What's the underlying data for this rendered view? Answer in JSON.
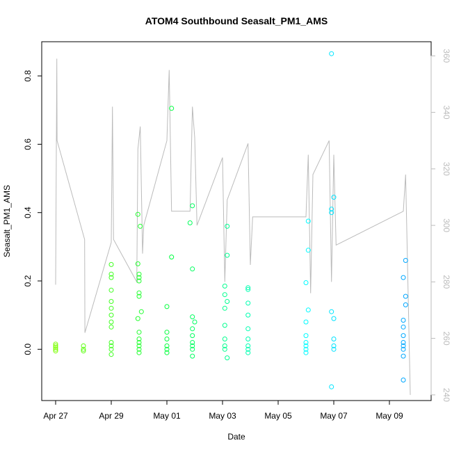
{
  "chart_data": {
    "type": "scatter",
    "title": "ATOM4 Southbound Seasalt_PM1_AMS",
    "xlabel": "Date",
    "ylabel": "Seasalt_PM1_AMS",
    "xlim": [
      "2018-04-26T12:00",
      "2018-05-10T12:00"
    ],
    "ylim": [
      -0.15,
      0.9
    ],
    "y2lim": [
      238,
      365
    ],
    "x_ticks": [
      {
        "date": "2018-04-27",
        "label": "Apr 27"
      },
      {
        "date": "2018-04-29",
        "label": "Apr 29"
      },
      {
        "date": "2018-05-01",
        "label": "May 01"
      },
      {
        "date": "2018-05-03",
        "label": "May 03"
      },
      {
        "date": "2018-05-05",
        "label": "May 05"
      },
      {
        "date": "2018-05-07",
        "label": "May 07"
      },
      {
        "date": "2018-05-09",
        "label": "May 09"
      }
    ],
    "y_ticks": [
      "0.0",
      "0.2",
      "0.4",
      "0.6",
      "0.8"
    ],
    "y2_ticks": [
      "240",
      "260",
      "280",
      "300",
      "320",
      "340",
      "360"
    ],
    "grid": false,
    "point_color_gradient": [
      "#8cff00",
      "#00ff40",
      "#00ffff",
      "#0090ff"
    ],
    "line_color": "#bbbbbb",
    "profile_series": [
      {
        "x": "2018-04-27T00:00",
        "y": 279
      },
      {
        "x": "2018-04-27T01:00",
        "y": 359
      },
      {
        "x": "2018-04-27T01:15",
        "y": 330
      },
      {
        "x": "2018-04-28T01:00",
        "y": 295
      },
      {
        "x": "2018-04-28T01:15",
        "y": 262
      },
      {
        "x": "2018-04-29T00:00",
        "y": 294
      },
      {
        "x": "2018-04-29T01:00",
        "y": 342
      },
      {
        "x": "2018-04-29T02:00",
        "y": 295
      },
      {
        "x": "2018-04-29T22:00",
        "y": 280
      },
      {
        "x": "2018-04-29T23:00",
        "y": 327
      },
      {
        "x": "2018-04-30T01:00",
        "y": 335
      },
      {
        "x": "2018-04-30T03:00",
        "y": 290
      },
      {
        "x": "2018-04-30T04:00",
        "y": 300
      },
      {
        "x": "2018-05-01T00:00",
        "y": 330
      },
      {
        "x": "2018-05-01T02:00",
        "y": 355
      },
      {
        "x": "2018-05-01T04:00",
        "y": 305
      },
      {
        "x": "2018-05-01T20:00",
        "y": 305
      },
      {
        "x": "2018-05-01T22:00",
        "y": 342
      },
      {
        "x": "2018-05-02T00:00",
        "y": 331
      },
      {
        "x": "2018-05-02T02:00",
        "y": 300
      },
      {
        "x": "2018-05-03T00:00",
        "y": 324
      },
      {
        "x": "2018-05-03T02:00",
        "y": 280
      },
      {
        "x": "2018-05-03T04:00",
        "y": 309
      },
      {
        "x": "2018-05-03T22:00",
        "y": 329
      },
      {
        "x": "2018-05-04T00:00",
        "y": 286
      },
      {
        "x": "2018-05-04T02:00",
        "y": 303
      },
      {
        "x": "2018-05-06T00:00",
        "y": 303
      },
      {
        "x": "2018-05-06T02:00",
        "y": 325
      },
      {
        "x": "2018-05-06T04:00",
        "y": 276
      },
      {
        "x": "2018-05-06T06:00",
        "y": 318
      },
      {
        "x": "2018-05-06T20:00",
        "y": 330
      },
      {
        "x": "2018-05-06T22:00",
        "y": 280
      },
      {
        "x": "2018-05-07T00:00",
        "y": 325
      },
      {
        "x": "2018-05-07T02:00",
        "y": 293
      },
      {
        "x": "2018-05-09T12:00",
        "y": 305
      },
      {
        "x": "2018-05-09T14:00",
        "y": 318
      },
      {
        "x": "2018-05-09T18:00",
        "y": 240
      }
    ],
    "points": [
      {
        "x": "2018-04-27T00:00",
        "y": 0.01
      },
      {
        "x": "2018-04-27T00:00",
        "y": 0.0
      },
      {
        "x": "2018-04-27T00:00",
        "y": 0.005
      },
      {
        "x": "2018-04-27T00:00",
        "y": -0.005
      },
      {
        "x": "2018-04-27T00:00",
        "y": 0.015
      },
      {
        "x": "2018-04-28T00:00",
        "y": 0.01
      },
      {
        "x": "2018-04-28T00:00",
        "y": 0.0
      },
      {
        "x": "2018-04-28T00:00",
        "y": -0.005
      },
      {
        "x": "2018-04-29T00:00",
        "y": 0.248
      },
      {
        "x": "2018-04-29T00:00",
        "y": 0.22
      },
      {
        "x": "2018-04-29T00:00",
        "y": 0.21
      },
      {
        "x": "2018-04-29T00:00",
        "y": 0.173
      },
      {
        "x": "2018-04-29T00:00",
        "y": 0.14
      },
      {
        "x": "2018-04-29T00:00",
        "y": 0.12
      },
      {
        "x": "2018-04-29T00:00",
        "y": 0.1
      },
      {
        "x": "2018-04-29T00:00",
        "y": 0.08
      },
      {
        "x": "2018-04-29T00:00",
        "y": 0.065
      },
      {
        "x": "2018-04-29T00:00",
        "y": 0.02
      },
      {
        "x": "2018-04-29T00:00",
        "y": 0.01
      },
      {
        "x": "2018-04-29T00:00",
        "y": 0.0
      },
      {
        "x": "2018-04-29T00:00",
        "y": -0.015
      },
      {
        "x": "2018-04-29T23:00",
        "y": 0.395
      },
      {
        "x": "2018-04-30T01:00",
        "y": 0.36
      },
      {
        "x": "2018-04-29T23:00",
        "y": 0.25
      },
      {
        "x": "2018-04-30T00:00",
        "y": 0.22
      },
      {
        "x": "2018-04-30T00:00",
        "y": 0.21
      },
      {
        "x": "2018-04-30T00:00",
        "y": 0.2
      },
      {
        "x": "2018-04-30T00:00",
        "y": 0.165
      },
      {
        "x": "2018-04-30T00:00",
        "y": 0.155
      },
      {
        "x": "2018-04-30T02:00",
        "y": 0.11
      },
      {
        "x": "2018-04-29T23:00",
        "y": 0.09
      },
      {
        "x": "2018-04-30T00:00",
        "y": 0.05
      },
      {
        "x": "2018-04-30T00:00",
        "y": 0.03
      },
      {
        "x": "2018-04-30T00:00",
        "y": 0.02
      },
      {
        "x": "2018-04-30T00:00",
        "y": 0.01
      },
      {
        "x": "2018-04-30T00:00",
        "y": 0.0
      },
      {
        "x": "2018-04-30T00:00",
        "y": -0.01
      },
      {
        "x": "2018-05-01T00:00",
        "y": 0.125
      },
      {
        "x": "2018-05-01T04:00",
        "y": 0.27
      },
      {
        "x": "2018-05-01T04:00",
        "y": 0.705
      },
      {
        "x": "2018-05-01T00:00",
        "y": 0.05
      },
      {
        "x": "2018-05-01T00:00",
        "y": 0.03
      },
      {
        "x": "2018-05-01T00:00",
        "y": 0.01
      },
      {
        "x": "2018-05-01T00:00",
        "y": 0.0
      },
      {
        "x": "2018-05-01T00:00",
        "y": -0.01
      },
      {
        "x": "2018-05-01T20:00",
        "y": 0.37
      },
      {
        "x": "2018-05-01T22:00",
        "y": 0.42
      },
      {
        "x": "2018-05-01T22:00",
        "y": 0.235
      },
      {
        "x": "2018-05-01T22:00",
        "y": 0.095
      },
      {
        "x": "2018-05-02T00:00",
        "y": 0.08
      },
      {
        "x": "2018-05-01T22:00",
        "y": 0.06
      },
      {
        "x": "2018-05-01T22:00",
        "y": 0.04
      },
      {
        "x": "2018-05-01T22:00",
        "y": 0.02
      },
      {
        "x": "2018-05-01T22:00",
        "y": 0.01
      },
      {
        "x": "2018-05-01T22:00",
        "y": 0.0
      },
      {
        "x": "2018-05-01T22:00",
        "y": -0.02
      },
      {
        "x": "2018-05-03T04:00",
        "y": 0.36
      },
      {
        "x": "2018-05-03T04:00",
        "y": 0.275
      },
      {
        "x": "2018-05-03T02:00",
        "y": 0.185
      },
      {
        "x": "2018-05-03T02:00",
        "y": 0.16
      },
      {
        "x": "2018-05-03T04:00",
        "y": 0.14
      },
      {
        "x": "2018-05-03T02:00",
        "y": 0.12
      },
      {
        "x": "2018-05-03T02:00",
        "y": 0.07
      },
      {
        "x": "2018-05-03T02:00",
        "y": 0.03
      },
      {
        "x": "2018-05-03T02:00",
        "y": 0.01
      },
      {
        "x": "2018-05-03T02:00",
        "y": 0.0
      },
      {
        "x": "2018-05-03T04:00",
        "y": -0.025
      },
      {
        "x": "2018-05-03T22:00",
        "y": 0.18
      },
      {
        "x": "2018-05-03T22:00",
        "y": 0.175
      },
      {
        "x": "2018-05-03T22:00",
        "y": 0.135
      },
      {
        "x": "2018-05-03T22:00",
        "y": 0.1
      },
      {
        "x": "2018-05-03T22:00",
        "y": 0.06
      },
      {
        "x": "2018-05-03T22:00",
        "y": 0.03
      },
      {
        "x": "2018-05-03T22:00",
        "y": 0.01
      },
      {
        "x": "2018-05-03T22:00",
        "y": 0.0
      },
      {
        "x": "2018-05-03T22:00",
        "y": -0.01
      },
      {
        "x": "2018-05-06T02:00",
        "y": 0.375
      },
      {
        "x": "2018-05-06T02:00",
        "y": 0.29
      },
      {
        "x": "2018-05-06T00:00",
        "y": 0.195
      },
      {
        "x": "2018-05-06T02:00",
        "y": 0.115
      },
      {
        "x": "2018-05-06T00:00",
        "y": 0.08
      },
      {
        "x": "2018-05-06T00:00",
        "y": 0.04
      },
      {
        "x": "2018-05-06T00:00",
        "y": 0.02
      },
      {
        "x": "2018-05-06T00:00",
        "y": 0.01
      },
      {
        "x": "2018-05-06T00:00",
        "y": 0.0
      },
      {
        "x": "2018-05-06T00:00",
        "y": -0.01
      },
      {
        "x": "2018-05-06T22:00",
        "y": 0.865
      },
      {
        "x": "2018-05-07T00:00",
        "y": 0.445
      },
      {
        "x": "2018-05-06T22:00",
        "y": 0.41
      },
      {
        "x": "2018-05-06T22:00",
        "y": 0.4
      },
      {
        "x": "2018-05-06T22:00",
        "y": 0.11
      },
      {
        "x": "2018-05-07T00:00",
        "y": 0.09
      },
      {
        "x": "2018-05-07T00:00",
        "y": 0.03
      },
      {
        "x": "2018-05-07T00:00",
        "y": 0.01
      },
      {
        "x": "2018-05-07T00:00",
        "y": 0.0
      },
      {
        "x": "2018-05-06T22:00",
        "y": -0.11
      },
      {
        "x": "2018-05-09T12:00",
        "y": 0.21
      },
      {
        "x": "2018-05-09T14:00",
        "y": 0.26
      },
      {
        "x": "2018-05-09T14:00",
        "y": 0.155
      },
      {
        "x": "2018-05-09T14:00",
        "y": 0.13
      },
      {
        "x": "2018-05-09T12:00",
        "y": 0.085
      },
      {
        "x": "2018-05-09T12:00",
        "y": 0.065
      },
      {
        "x": "2018-05-09T12:00",
        "y": 0.04
      },
      {
        "x": "2018-05-09T12:00",
        "y": 0.02
      },
      {
        "x": "2018-05-09T12:00",
        "y": 0.01
      },
      {
        "x": "2018-05-09T12:00",
        "y": 0.0
      },
      {
        "x": "2018-05-09T12:00",
        "y": -0.02
      },
      {
        "x": "2018-05-09T12:00",
        "y": -0.09
      }
    ]
  }
}
